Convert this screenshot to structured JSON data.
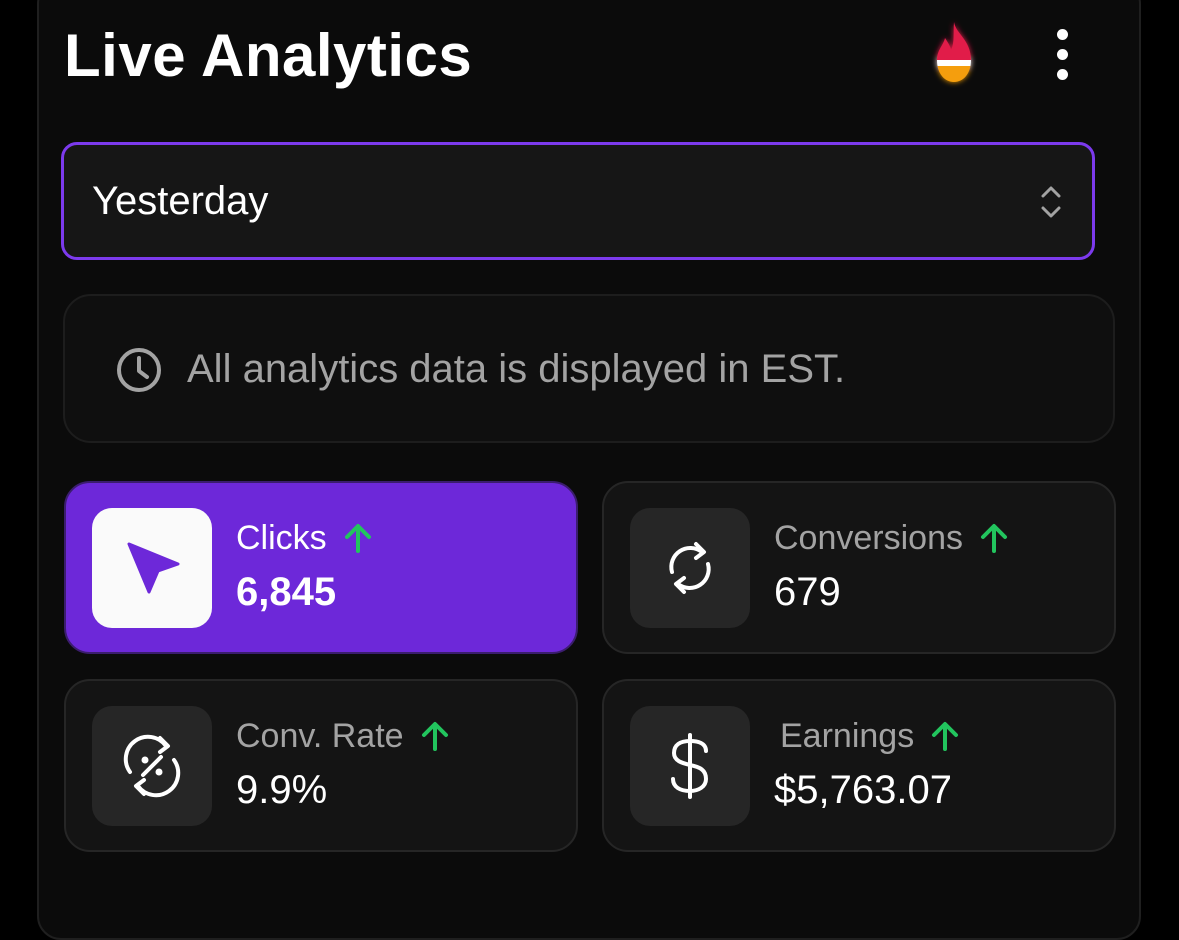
{
  "header": {
    "title": "Live Analytics"
  },
  "date_select": {
    "value": "Yesterday"
  },
  "notice": {
    "text": "All analytics data is displayed in EST."
  },
  "colors": {
    "accent": "#7c3aed",
    "active_card": "#6d28d9",
    "trend_up": "#22c55e"
  },
  "metrics": [
    {
      "label": "Clicks",
      "value": "6,845",
      "icon": "cursor-icon",
      "trend": "up",
      "active": true
    },
    {
      "label": "Conversions",
      "value": "679",
      "icon": "refresh-icon",
      "trend": "up",
      "active": false
    },
    {
      "label": "Conv. Rate",
      "value": "9.9%",
      "icon": "percent-cycle-icon",
      "trend": "up",
      "active": false
    },
    {
      "label": "Earnings",
      "value": "$5,763.07",
      "icon": "dollar-icon",
      "trend": "up",
      "active": false
    }
  ]
}
